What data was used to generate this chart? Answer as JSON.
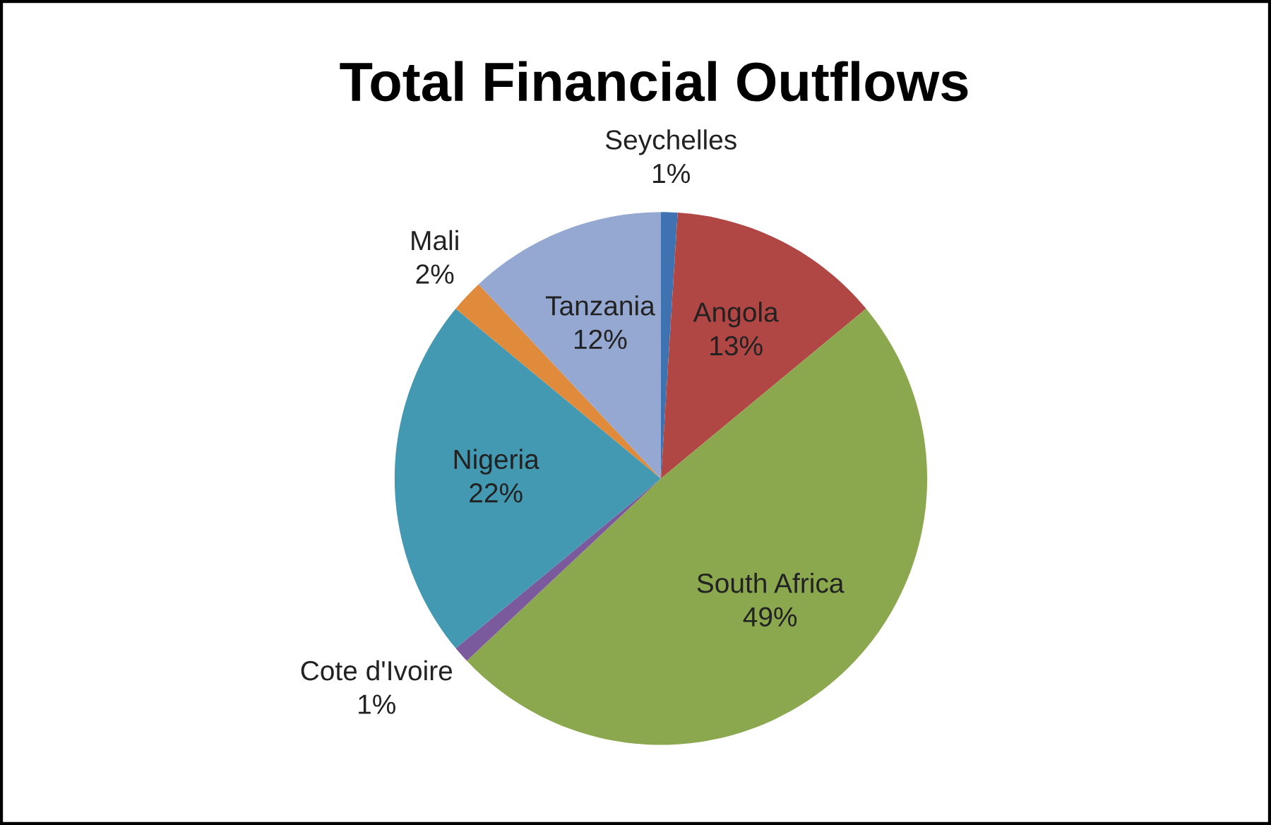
{
  "chart_data": {
    "type": "pie",
    "title": "Total Financial Outflows",
    "categories": [
      "Seychelles",
      "Angola",
      "South Africa",
      "Cote d'Ivoire",
      "Nigeria",
      "Mali",
      "Tanzania"
    ],
    "values": [
      1,
      13,
      49,
      1,
      22,
      2,
      12
    ],
    "colors": [
      "#3f72b0",
      "#b04744",
      "#8ba84f",
      "#7a5a9c",
      "#4299b1",
      "#e08a3c",
      "#94a8d1"
    ],
    "value_labels": [
      "1%",
      "13%",
      "49%",
      "1%",
      "22%",
      "2%",
      "12%"
    ],
    "legend": false
  }
}
